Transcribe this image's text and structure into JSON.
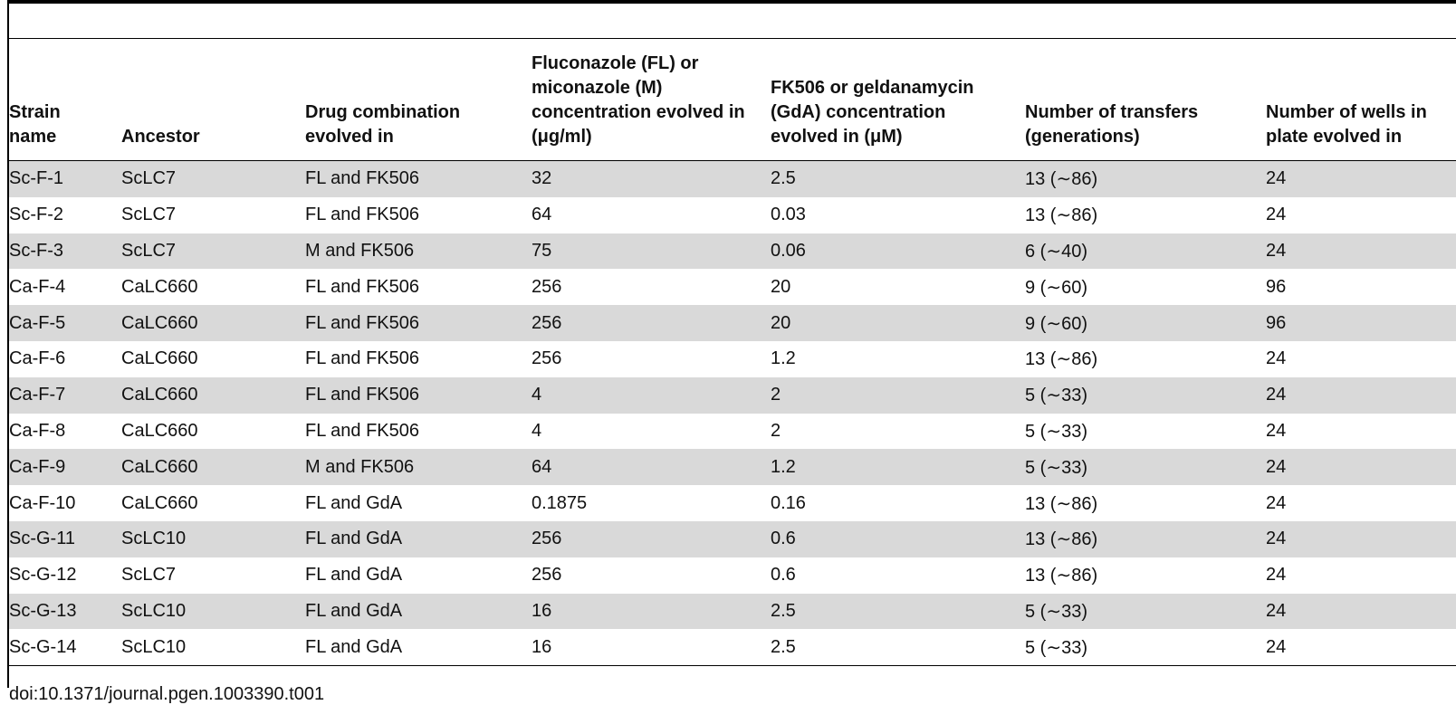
{
  "table": {
    "headers": [
      "Strain name",
      "Ancestor",
      "Drug combination evolved in",
      "Fluconazole (FL) or miconazole (M) concentration evolved in (μg/ml)",
      "FK506 or geldanamycin (GdA) concentration evolved in (μM)",
      "Number of transfers (generations)",
      "Number of wells in plate evolved in"
    ],
    "rows": [
      [
        "Sc-F-1",
        "ScLC7",
        "FL and FK506",
        "32",
        "2.5",
        "13 (∼86)",
        "24"
      ],
      [
        "Sc-F-2",
        "ScLC7",
        "FL and FK506",
        "64",
        "0.03",
        "13 (∼86)",
        "24"
      ],
      [
        "Sc-F-3",
        "ScLC7",
        "M and FK506",
        "75",
        "0.06",
        "6 (∼40)",
        "24"
      ],
      [
        "Ca-F-4",
        "CaLC660",
        "FL and FK506",
        "256",
        "20",
        "9 (∼60)",
        "96"
      ],
      [
        "Ca-F-5",
        "CaLC660",
        "FL and FK506",
        "256",
        "20",
        "9 (∼60)",
        "96"
      ],
      [
        "Ca-F-6",
        "CaLC660",
        "FL and FK506",
        "256",
        "1.2",
        "13 (∼86)",
        "24"
      ],
      [
        "Ca-F-7",
        "CaLC660",
        "FL and FK506",
        "4",
        "2",
        "5 (∼33)",
        "24"
      ],
      [
        "Ca-F-8",
        "CaLC660",
        "FL and FK506",
        "4",
        "2",
        "5 (∼33)",
        "24"
      ],
      [
        "Ca-F-9",
        "CaLC660",
        "M and FK506",
        "64",
        "1.2",
        "5 (∼33)",
        "24"
      ],
      [
        "Ca-F-10",
        "CaLC660",
        "FL and GdA",
        "0.1875",
        "0.16",
        "13 (∼86)",
        "24"
      ],
      [
        "Sc-G-11",
        "ScLC10",
        "FL and GdA",
        "256",
        "0.6",
        "13 (∼86)",
        "24"
      ],
      [
        "Sc-G-12",
        "ScLC7",
        "FL and GdA",
        "256",
        "0.6",
        "13 (∼86)",
        "24"
      ],
      [
        "Sc-G-13",
        "ScLC10",
        "FL and GdA",
        "16",
        "2.5",
        "5 (∼33)",
        "24"
      ],
      [
        "Sc-G-14",
        "ScLC10",
        "FL and GdA",
        "16",
        "2.5",
        "5 (∼33)",
        "24"
      ]
    ]
  },
  "footer": {
    "doi": "doi:10.1371/journal.pgen.1003390.t001"
  }
}
